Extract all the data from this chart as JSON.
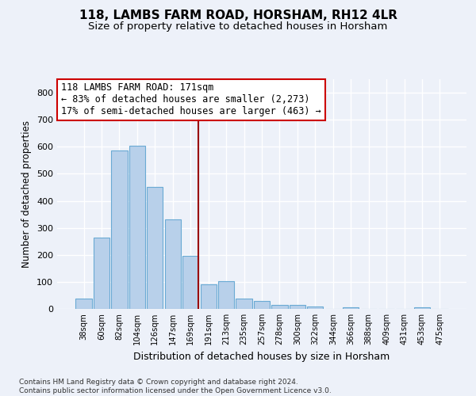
{
  "title1": "118, LAMBS FARM ROAD, HORSHAM, RH12 4LR",
  "title2": "Size of property relative to detached houses in Horsham",
  "xlabel": "Distribution of detached houses by size in Horsham",
  "ylabel": "Number of detached properties",
  "footnote": "Contains HM Land Registry data © Crown copyright and database right 2024.\nContains public sector information licensed under the Open Government Licence v3.0.",
  "categories": [
    "38sqm",
    "60sqm",
    "82sqm",
    "104sqm",
    "126sqm",
    "147sqm",
    "169sqm",
    "191sqm",
    "213sqm",
    "235sqm",
    "257sqm",
    "278sqm",
    "300sqm",
    "322sqm",
    "344sqm",
    "366sqm",
    "388sqm",
    "409sqm",
    "431sqm",
    "453sqm",
    "475sqm"
  ],
  "values": [
    38,
    265,
    585,
    605,
    452,
    330,
    196,
    92,
    102,
    38,
    30,
    15,
    15,
    10,
    0,
    6,
    0,
    0,
    0,
    6,
    0
  ],
  "bar_color": "#b8d0ea",
  "bar_edge_color": "#6aaad4",
  "vline_x": 6.42,
  "vline_color": "#990000",
  "annotation_box_text": "118 LAMBS FARM ROAD: 171sqm\n← 83% of detached houses are smaller (2,273)\n17% of semi-detached houses are larger (463) →",
  "annotation_box_color": "#cc0000",
  "ylim": [
    0,
    850
  ],
  "yticks": [
    0,
    100,
    200,
    300,
    400,
    500,
    600,
    700,
    800
  ],
  "bg_color": "#edf1f9",
  "grid_color": "#ffffff",
  "title_fontsize": 11,
  "subtitle_fontsize": 9.5,
  "annot_fontsize": 8.5
}
